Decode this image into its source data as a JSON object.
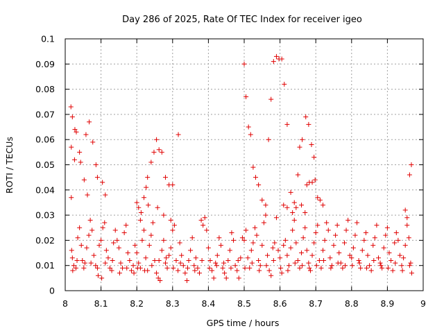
{
  "chart_data": {
    "type": "scatter",
    "title": "Day 286 of 2025, Rate Of TEC Index for receiver igeo",
    "xlabel": "GPS time / hours",
    "ylabel": "ROTI / TECUs",
    "xlim": [
      8,
      9
    ],
    "ylim": [
      0,
      0.1
    ],
    "x_ticks": [
      "8",
      "8.1",
      "8.2",
      "8.3",
      "8.4",
      "8.5",
      "8.6",
      "8.7",
      "8.8",
      "8.9",
      "9"
    ],
    "y_ticks": [
      "0",
      "0.01",
      "0.02",
      "0.03",
      "0.04",
      "0.05",
      "0.06",
      "0.07",
      "0.08",
      "0.09",
      "0.1"
    ],
    "grid": true,
    "marker": "plus",
    "color": "#e00000",
    "points": [
      [
        8.016,
        0.073
      ],
      [
        8.02,
        0.069
      ],
      [
        8.017,
        0.057
      ],
      [
        8.027,
        0.064
      ],
      [
        8.031,
        0.063
      ],
      [
        8.026,
        0.052
      ],
      [
        8.04,
        0.055
      ],
      [
        8.043,
        0.051
      ],
      [
        8.058,
        0.062
      ],
      [
        8.067,
        0.067
      ],
      [
        8.077,
        0.059
      ],
      [
        8.086,
        0.05
      ],
      [
        8.09,
        0.045
      ],
      [
        8.104,
        0.043
      ],
      [
        8.053,
        0.044
      ],
      [
        8.062,
        0.038
      ],
      [
        8.017,
        0.037
      ],
      [
        8.112,
        0.038
      ],
      [
        8.018,
        0.016
      ],
      [
        8.02,
        0.013
      ],
      [
        8.024,
        0.01
      ],
      [
        8.03,
        0.009
      ],
      [
        8.035,
        0.021
      ],
      [
        8.04,
        0.025
      ],
      [
        8.045,
        0.018
      ],
      [
        8.048,
        0.012
      ],
      [
        8.055,
        0.011
      ],
      [
        8.06,
        0.017
      ],
      [
        8.066,
        0.022
      ],
      [
        8.07,
        0.028
      ],
      [
        8.075,
        0.024
      ],
      [
        8.08,
        0.014
      ],
      [
        8.085,
        0.01
      ],
      [
        8.09,
        0.009
      ],
      [
        8.095,
        0.018
      ],
      [
        8.1,
        0.02
      ],
      [
        8.105,
        0.025
      ],
      [
        8.11,
        0.027
      ],
      [
        8.115,
        0.016
      ],
      [
        8.12,
        0.013
      ],
      [
        8.125,
        0.009
      ],
      [
        8.13,
        0.008
      ],
      [
        8.135,
        0.019
      ],
      [
        8.14,
        0.024
      ],
      [
        8.145,
        0.02
      ],
      [
        8.15,
        0.017
      ],
      [
        8.155,
        0.011
      ],
      [
        8.16,
        0.009
      ],
      [
        8.165,
        0.023
      ],
      [
        8.17,
        0.026
      ],
      [
        8.175,
        0.015
      ],
      [
        8.18,
        0.012
      ],
      [
        8.185,
        0.008
      ],
      [
        8.19,
        0.01
      ],
      [
        8.195,
        0.018
      ],
      [
        8.021,
        0.008
      ],
      [
        8.033,
        0.012
      ],
      [
        8.052,
        0.009
      ],
      [
        8.072,
        0.011
      ],
      [
        8.092,
        0.006
      ],
      [
        8.102,
        0.005
      ],
      [
        8.112,
        0.011
      ],
      [
        8.132,
        0.012
      ],
      [
        8.152,
        0.007
      ],
      [
        8.172,
        0.009
      ],
      [
        8.192,
        0.007
      ],
      [
        8.2,
        0.035
      ],
      [
        8.205,
        0.033
      ],
      [
        8.212,
        0.031
      ],
      [
        8.22,
        0.037
      ],
      [
        8.226,
        0.041
      ],
      [
        8.23,
        0.045
      ],
      [
        8.24,
        0.051
      ],
      [
        8.248,
        0.055
      ],
      [
        8.255,
        0.06
      ],
      [
        8.262,
        0.056
      ],
      [
        8.27,
        0.055
      ],
      [
        8.28,
        0.045
      ],
      [
        8.29,
        0.042
      ],
      [
        8.3,
        0.042
      ],
      [
        8.316,
        0.062
      ],
      [
        8.21,
        0.028
      ],
      [
        8.232,
        0.034
      ],
      [
        8.258,
        0.033
      ],
      [
        8.275,
        0.03
      ],
      [
        8.295,
        0.028
      ],
      [
        8.2,
        0.015
      ],
      [
        8.205,
        0.011
      ],
      [
        8.21,
        0.009
      ],
      [
        8.215,
        0.02
      ],
      [
        8.22,
        0.024
      ],
      [
        8.225,
        0.013
      ],
      [
        8.23,
        0.008
      ],
      [
        8.235,
        0.018
      ],
      [
        8.24,
        0.022
      ],
      [
        8.245,
        0.027
      ],
      [
        8.25,
        0.012
      ],
      [
        8.255,
        0.007
      ],
      [
        8.26,
        0.005
      ],
      [
        8.265,
        0.004
      ],
      [
        8.27,
        0.016
      ],
      [
        8.275,
        0.02
      ],
      [
        8.28,
        0.011
      ],
      [
        8.285,
        0.009
      ],
      [
        8.29,
        0.014
      ],
      [
        8.295,
        0.017
      ],
      [
        8.3,
        0.024
      ],
      [
        8.305,
        0.026
      ],
      [
        8.31,
        0.012
      ],
      [
        8.315,
        0.008
      ],
      [
        8.32,
        0.019
      ],
      [
        8.325,
        0.014
      ],
      [
        8.33,
        0.01
      ],
      [
        8.335,
        0.007
      ],
      [
        8.34,
        0.004
      ],
      [
        8.345,
        0.012
      ],
      [
        8.35,
        0.016
      ],
      [
        8.355,
        0.021
      ],
      [
        8.36,
        0.01
      ],
      [
        8.365,
        0.013
      ],
      [
        8.37,
        0.009
      ],
      [
        8.375,
        0.007
      ],
      [
        8.38,
        0.028
      ],
      [
        8.385,
        0.026
      ],
      [
        8.39,
        0.029
      ],
      [
        8.395,
        0.024
      ],
      [
        8.202,
        0.009
      ],
      [
        8.222,
        0.008
      ],
      [
        8.242,
        0.01
      ],
      [
        8.262,
        0.012
      ],
      [
        8.282,
        0.013
      ],
      [
        8.302,
        0.009
      ],
      [
        8.322,
        0.011
      ],
      [
        8.342,
        0.009
      ],
      [
        8.362,
        0.008
      ],
      [
        8.382,
        0.012
      ],
      [
        8.4,
        0.017
      ],
      [
        8.405,
        0.012
      ],
      [
        8.41,
        0.008
      ],
      [
        8.415,
        0.005
      ],
      [
        8.42,
        0.011
      ],
      [
        8.425,
        0.014
      ],
      [
        8.43,
        0.021
      ],
      [
        8.435,
        0.018
      ],
      [
        8.44,
        0.009
      ],
      [
        8.445,
        0.007
      ],
      [
        8.45,
        0.005
      ],
      [
        8.455,
        0.012
      ],
      [
        8.46,
        0.016
      ],
      [
        8.465,
        0.023
      ],
      [
        8.47,
        0.02
      ],
      [
        8.475,
        0.01
      ],
      [
        8.48,
        0.008
      ],
      [
        8.485,
        0.005
      ],
      [
        8.49,
        0.013
      ],
      [
        8.495,
        0.021
      ],
      [
        8.403,
        0.009
      ],
      [
        8.423,
        0.01
      ],
      [
        8.443,
        0.011
      ],
      [
        8.463,
        0.009
      ],
      [
        8.483,
        0.012
      ],
      [
        8.5,
        0.09
      ],
      [
        8.505,
        0.077
      ],
      [
        8.512,
        0.065
      ],
      [
        8.518,
        0.062
      ],
      [
        8.525,
        0.049
      ],
      [
        8.532,
        0.045
      ],
      [
        8.54,
        0.042
      ],
      [
        8.55,
        0.036
      ],
      [
        8.56,
        0.034
      ],
      [
        8.568,
        0.06
      ],
      [
        8.575,
        0.076
      ],
      [
        8.582,
        0.091
      ],
      [
        8.59,
        0.093
      ],
      [
        8.597,
        0.092
      ],
      [
        8.605,
        0.092
      ],
      [
        8.612,
        0.082
      ],
      [
        8.62,
        0.066
      ],
      [
        8.63,
        0.039
      ],
      [
        8.64,
        0.035
      ],
      [
        8.65,
        0.046
      ],
      [
        8.655,
        0.057
      ],
      [
        8.662,
        0.06
      ],
      [
        8.672,
        0.069
      ],
      [
        8.68,
        0.066
      ],
      [
        8.688,
        0.058
      ],
      [
        8.695,
        0.053
      ],
      [
        8.675,
        0.042
      ],
      [
        8.682,
        0.043
      ],
      [
        8.69,
        0.043
      ],
      [
        8.698,
        0.044
      ],
      [
        8.61,
        0.034
      ],
      [
        8.62,
        0.033
      ],
      [
        8.635,
        0.031
      ],
      [
        8.645,
        0.033
      ],
      [
        8.66,
        0.034
      ],
      [
        8.67,
        0.031
      ],
      [
        8.705,
        0.037
      ],
      [
        8.712,
        0.036
      ],
      [
        8.72,
        0.034
      ],
      [
        8.5,
        0.02
      ],
      [
        8.505,
        0.024
      ],
      [
        8.51,
        0.013
      ],
      [
        8.515,
        0.009
      ],
      [
        8.52,
        0.016
      ],
      [
        8.525,
        0.019
      ],
      [
        8.53,
        0.025
      ],
      [
        8.535,
        0.022
      ],
      [
        8.54,
        0.012
      ],
      [
        8.545,
        0.01
      ],
      [
        8.55,
        0.018
      ],
      [
        8.555,
        0.027
      ],
      [
        8.56,
        0.03
      ],
      [
        8.565,
        0.014
      ],
      [
        8.57,
        0.008
      ],
      [
        8.575,
        0.006
      ],
      [
        8.58,
        0.017
      ],
      [
        8.585,
        0.019
      ],
      [
        8.59,
        0.029
      ],
      [
        8.595,
        0.016
      ],
      [
        8.6,
        0.013
      ],
      [
        8.605,
        0.007
      ],
      [
        8.61,
        0.018
      ],
      [
        8.615,
        0.02
      ],
      [
        8.62,
        0.014
      ],
      [
        8.625,
        0.01
      ],
      [
        8.63,
        0.017
      ],
      [
        8.635,
        0.024
      ],
      [
        8.64,
        0.028
      ],
      [
        8.645,
        0.019
      ],
      [
        8.65,
        0.012
      ],
      [
        8.655,
        0.009
      ],
      [
        8.66,
        0.015
      ],
      [
        8.665,
        0.021
      ],
      [
        8.67,
        0.025
      ],
      [
        8.675,
        0.016
      ],
      [
        8.68,
        0.011
      ],
      [
        8.685,
        0.008
      ],
      [
        8.69,
        0.014
      ],
      [
        8.695,
        0.019
      ],
      [
        8.7,
        0.023
      ],
      [
        8.705,
        0.026
      ],
      [
        8.71,
        0.012
      ],
      [
        8.715,
        0.009
      ],
      [
        8.72,
        0.016
      ],
      [
        8.725,
        0.02
      ],
      [
        8.73,
        0.027
      ],
      [
        8.735,
        0.024
      ],
      [
        8.74,
        0.013
      ],
      [
        8.745,
        0.01
      ],
      [
        8.75,
        0.018
      ],
      [
        8.755,
        0.022
      ],
      [
        8.76,
        0.026
      ],
      [
        8.765,
        0.015
      ],
      [
        8.77,
        0.011
      ],
      [
        8.775,
        0.009
      ],
      [
        8.78,
        0.019
      ],
      [
        8.785,
        0.024
      ],
      [
        8.79,
        0.028
      ],
      [
        8.795,
        0.014
      ],
      [
        8.502,
        0.009
      ],
      [
        8.522,
        0.011
      ],
      [
        8.542,
        0.008
      ],
      [
        8.562,
        0.01
      ],
      [
        8.582,
        0.012
      ],
      [
        8.602,
        0.009
      ],
      [
        8.622,
        0.008
      ],
      [
        8.642,
        0.011
      ],
      [
        8.662,
        0.01
      ],
      [
        8.682,
        0.009
      ],
      [
        8.702,
        0.01
      ],
      [
        8.722,
        0.012
      ],
      [
        8.742,
        0.009
      ],
      [
        8.762,
        0.011
      ],
      [
        8.782,
        0.01
      ],
      [
        8.8,
        0.013
      ],
      [
        8.805,
        0.017
      ],
      [
        8.81,
        0.022
      ],
      [
        8.815,
        0.027
      ],
      [
        8.82,
        0.012
      ],
      [
        8.825,
        0.009
      ],
      [
        8.83,
        0.016
      ],
      [
        8.835,
        0.02
      ],
      [
        8.84,
        0.023
      ],
      [
        8.845,
        0.014
      ],
      [
        8.85,
        0.01
      ],
      [
        8.855,
        0.008
      ],
      [
        8.86,
        0.018
      ],
      [
        8.865,
        0.021
      ],
      [
        8.87,
        0.026
      ],
      [
        8.875,
        0.013
      ],
      [
        8.88,
        0.011
      ],
      [
        8.885,
        0.009
      ],
      [
        8.89,
        0.017
      ],
      [
        8.895,
        0.022
      ],
      [
        8.9,
        0.025
      ],
      [
        8.905,
        0.015
      ],
      [
        8.91,
        0.012
      ],
      [
        8.915,
        0.008
      ],
      [
        8.92,
        0.019
      ],
      [
        8.925,
        0.023
      ],
      [
        8.93,
        0.02
      ],
      [
        8.935,
        0.014
      ],
      [
        8.94,
        0.01
      ],
      [
        8.945,
        0.013
      ],
      [
        8.95,
        0.018
      ],
      [
        8.955,
        0.026
      ],
      [
        8.96,
        0.021
      ],
      [
        8.965,
        0.011
      ],
      [
        8.968,
        0.007
      ],
      [
        8.95,
        0.032
      ],
      [
        8.955,
        0.029
      ],
      [
        8.962,
        0.046
      ],
      [
        8.967,
        0.05
      ],
      [
        8.802,
        0.01
      ],
      [
        8.822,
        0.011
      ],
      [
        8.842,
        0.009
      ],
      [
        8.862,
        0.012
      ],
      [
        8.882,
        0.01
      ],
      [
        8.902,
        0.009
      ],
      [
        8.922,
        0.011
      ],
      [
        8.942,
        0.008
      ],
      [
        8.962,
        0.01
      ]
    ]
  }
}
